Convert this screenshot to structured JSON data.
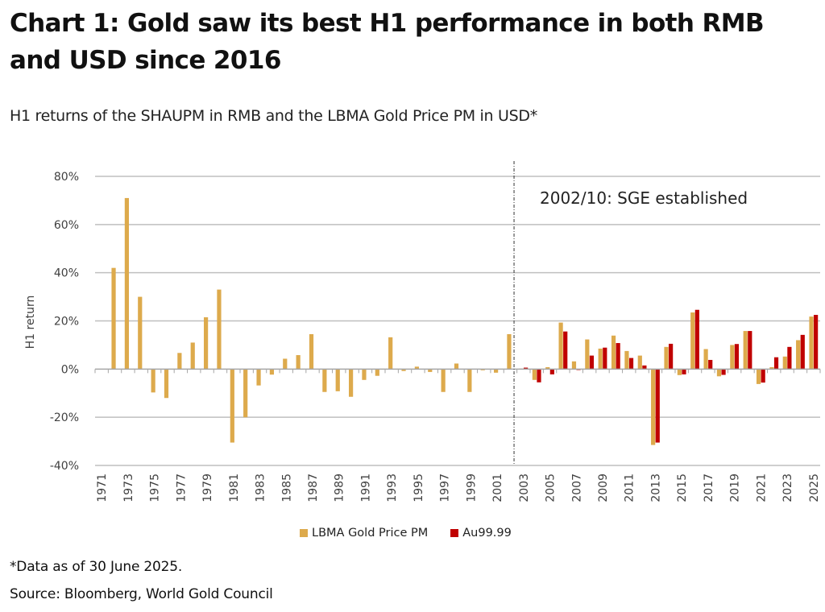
{
  "header": {
    "title": "Chart 1: Gold saw its best H1 performance in both RMB and USD since 2016",
    "subtitle": "H1 returns of the SHAUPM in RMB and the LBMA Gold Price PM in USD*"
  },
  "footer": {
    "footnote": "*Data as of 30 June 2025.",
    "source": "Source: Bloomberg, World Gold Council"
  },
  "colors": {
    "lbma": "#DDAA4C",
    "au9999": "#C00000",
    "grid": "#BFBFBF",
    "text": "#404040"
  },
  "chart_data": {
    "type": "bar",
    "title": "Chart 1: Gold saw its best H1 performance in both RMB and USD since 2016",
    "subtitle": "H1 returns of the SHAUPM in RMB and the LBMA Gold Price PM in USD*",
    "xlabel": "",
    "ylabel": "H1 return",
    "ylim": [
      -40,
      80
    ],
    "yticks": [
      -40,
      -20,
      0,
      20,
      40,
      60,
      80
    ],
    "ytick_labels": [
      "-40%",
      "-20%",
      "0%",
      "20%",
      "40%",
      "60%",
      "80%"
    ],
    "grid": true,
    "legend_position": "bottom",
    "annotation": {
      "text": "2002/10: SGE established",
      "x_marker": "2002/10"
    },
    "categories": [
      1971,
      1972,
      1973,
      1974,
      1975,
      1976,
      1977,
      1978,
      1979,
      1980,
      1981,
      1982,
      1983,
      1984,
      1985,
      1986,
      1987,
      1988,
      1989,
      1990,
      1991,
      1992,
      1993,
      1994,
      1995,
      1996,
      1997,
      1998,
      1999,
      2000,
      2001,
      2002,
      2003,
      2004,
      2005,
      2006,
      2007,
      2008,
      2009,
      2010,
      2011,
      2012,
      2013,
      2014,
      2015,
      2016,
      2017,
      2018,
      2019,
      2020,
      2021,
      2022,
      2023,
      2024,
      2025
    ],
    "xtick_labels": [
      "1971",
      "1973",
      "1975",
      "1977",
      "1979",
      "1981",
      "1983",
      "1985",
      "1987",
      "1989",
      "1991",
      "1993",
      "1995",
      "1997",
      "1999",
      "2001",
      "2003",
      "2005",
      "2007",
      "2009",
      "2011",
      "2013",
      "2015",
      "2017",
      "2019",
      "2021",
      "2023",
      "2025"
    ],
    "series": [
      {
        "name": "LBMA Gold Price PM",
        "color": "#DDAA4C",
        "values": [
          0,
          42,
          71,
          30,
          -9.7,
          -12,
          6.7,
          11,
          21.5,
          33,
          -30.5,
          -20,
          -6.8,
          -2.3,
          4.3,
          5.8,
          14.5,
          -9.5,
          -9.2,
          -11.5,
          -4.5,
          -2.8,
          13.2,
          -0.8,
          1.0,
          -1.2,
          -9.5,
          2.3,
          -9.5,
          -0.5,
          -1.5,
          14.5,
          0.2,
          -4.5,
          0.8,
          19.3,
          3.2,
          12.3,
          8.5,
          13.9,
          7.5,
          5.6,
          -31.5,
          9.2,
          -2.5,
          23.5,
          8.3,
          -3.0,
          10.0,
          15.8,
          -6.2,
          0.8,
          5.2,
          12.0,
          21.8
        ]
      },
      {
        "name": "Au99.99",
        "color": "#C00000",
        "values": [
          null,
          null,
          null,
          null,
          null,
          null,
          null,
          null,
          null,
          null,
          null,
          null,
          null,
          null,
          null,
          null,
          null,
          null,
          null,
          null,
          null,
          null,
          null,
          null,
          null,
          null,
          null,
          null,
          null,
          null,
          null,
          null,
          0.6,
          -5.5,
          -2.2,
          15.6,
          -0.4,
          5.6,
          8.9,
          10.8,
          4.6,
          1.5,
          -30.5,
          10.5,
          -2.2,
          24.6,
          3.8,
          -2.4,
          10.4,
          15.8,
          -5.6,
          4.9,
          9.2,
          14.2,
          22.5
        ]
      }
    ]
  }
}
